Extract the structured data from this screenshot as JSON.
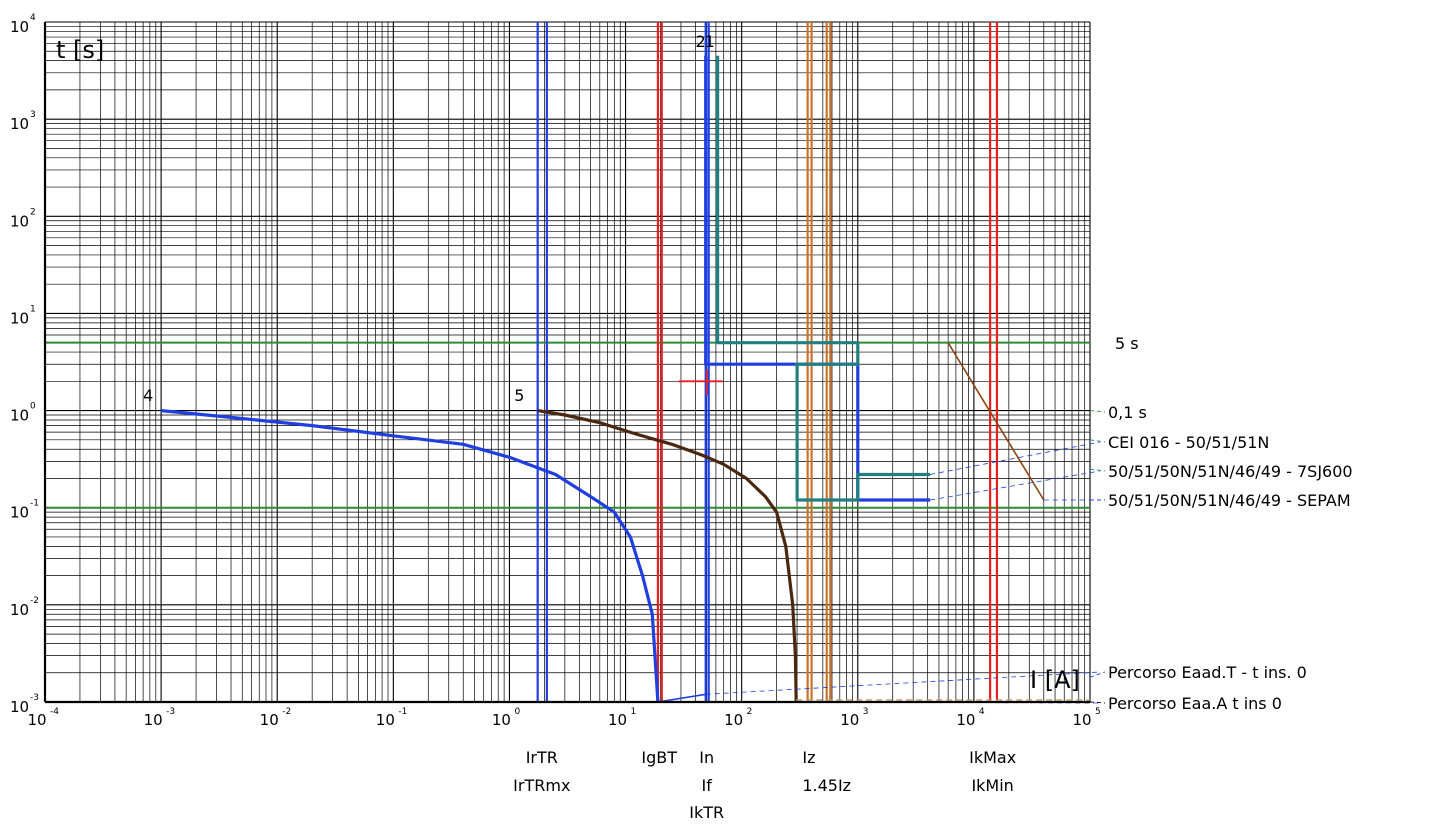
{
  "chart_data": {
    "type": "line",
    "title": "",
    "xlabel": "I [A]",
    "ylabel": "t [s]",
    "x_scale": "log",
    "y_scale": "log",
    "xlim": [
      0.0001,
      100000
    ],
    "ylim": [
      0.001,
      10000
    ],
    "grid": true,
    "x_ticks": [
      {
        "base": "10",
        "exp": "-4",
        "value": 0.0001
      },
      {
        "base": "10",
        "exp": "-3",
        "value": 0.001
      },
      {
        "base": "10",
        "exp": "-2",
        "value": 0.01
      },
      {
        "base": "10",
        "exp": "-1",
        "value": 0.1
      },
      {
        "base": "10",
        "exp": "0",
        "value": 1
      },
      {
        "base": "10",
        "exp": "1",
        "value": 10
      },
      {
        "base": "10",
        "exp": "2",
        "value": 100
      },
      {
        "base": "10",
        "exp": "3",
        "value": 1000
      },
      {
        "base": "10",
        "exp": "4",
        "value": 10000
      },
      {
        "base": "10",
        "exp": "5",
        "value": 100000
      }
    ],
    "y_ticks": [
      {
        "base": "10",
        "exp": "-3",
        "value": 0.001
      },
      {
        "base": "10",
        "exp": "-2",
        "value": 0.01
      },
      {
        "base": "10",
        "exp": "-1",
        "value": 0.1
      },
      {
        "base": "10",
        "exp": "0",
        "value": 1
      },
      {
        "base": "10",
        "exp": "1",
        "value": 10
      },
      {
        "base": "10",
        "exp": "2",
        "value": 100
      },
      {
        "base": "10",
        "exp": "3",
        "value": 1000
      },
      {
        "base": "10",
        "exp": "4",
        "value": 10000
      }
    ],
    "horizontal_lines": [
      {
        "y": 5,
        "color": "#2e8b2e",
        "label": "5 s"
      },
      {
        "y": 0.1,
        "color": "#2e8b2e",
        "label": ""
      }
    ],
    "vertical_lines": [
      {
        "x": 1.75,
        "color": "#1f3fe0"
      },
      {
        "x": 2.1,
        "color": "#1f3fe0"
      },
      {
        "x": 19,
        "color": "#e62020"
      },
      {
        "x": 20.5,
        "color": "#e62020"
      },
      {
        "x": 49,
        "color": "#1f3fe0"
      },
      {
        "x": 52,
        "color": "#1f3fe0"
      },
      {
        "x": 370,
        "color": "#c8732c"
      },
      {
        "x": 400,
        "color": "#c8732c"
      },
      {
        "x": 540,
        "color": "#c8732c"
      },
      {
        "x": 580,
        "color": "#c8732c"
      },
      {
        "x": 13800,
        "color": "#e62020"
      },
      {
        "x": 15800,
        "color": "#e62020"
      }
    ],
    "series": [
      {
        "label": "4",
        "color": "#1f3fe0",
        "points": [
          [
            0.001,
            1.0
          ],
          [
            0.004,
            0.85
          ],
          [
            0.02,
            0.7
          ],
          [
            0.1,
            0.55
          ],
          [
            0.4,
            0.45
          ],
          [
            1,
            0.33
          ],
          [
            2.5,
            0.22
          ],
          [
            5,
            0.13
          ],
          [
            8,
            0.09
          ],
          [
            11,
            0.05
          ],
          [
            14,
            0.02
          ],
          [
            17,
            0.008
          ],
          [
            19,
            0.001
          ]
        ]
      },
      {
        "label": "5",
        "color": "#4a2810",
        "points": [
          [
            1.75,
            1.0
          ],
          [
            3,
            0.9
          ],
          [
            6,
            0.75
          ],
          [
            12,
            0.58
          ],
          [
            25,
            0.45
          ],
          [
            45,
            0.35
          ],
          [
            70,
            0.28
          ],
          [
            110,
            0.2
          ],
          [
            160,
            0.13
          ],
          [
            200,
            0.09
          ],
          [
            240,
            0.04
          ],
          [
            275,
            0.01
          ],
          [
            290,
            0.003
          ],
          [
            295,
            0.001
          ]
        ]
      },
      {
        "label": "1",
        "color": "#1f3fe0",
        "points": [
          [
            49,
            4500
          ],
          [
            49,
            3
          ],
          [
            1000,
            3
          ],
          [
            1000,
            0.12
          ],
          [
            4200,
            0.12
          ]
        ]
      },
      {
        "label": "2",
        "color": "#208080",
        "points": [
          [
            62,
            4500
          ],
          [
            62,
            5
          ],
          [
            1000,
            5
          ],
          [
            1000,
            3
          ],
          [
            300,
            3
          ],
          [
            300,
            0.12
          ],
          [
            1000,
            0.12
          ],
          [
            1000,
            0.22
          ],
          [
            4200,
            0.22
          ]
        ]
      },
      {
        "label": "",
        "color": "#8b4513",
        "points": [
          [
            6000,
            5
          ],
          [
            40000,
            0.12
          ]
        ]
      },
      {
        "label": "",
        "color": "#1f3fe0",
        "points": [
          [
            19,
            0.001
          ],
          [
            49,
            0.0012
          ]
        ]
      }
    ],
    "curve_labels": [
      {
        "text": "4",
        "x": 0.0007,
        "y": 1.25
      },
      {
        "text": "5",
        "x": 1.1,
        "y": 1.25
      },
      {
        "text": "2",
        "x": 40,
        "y": 5500
      },
      {
        "text": "1",
        "x": 48,
        "y": 5500
      }
    ],
    "marker": {
      "x": 50,
      "y": 2,
      "color": "#e62020"
    },
    "legend": {
      "placement": "right",
      "entries": [
        {
          "text": "5 s",
          "color": "#2e8b2e",
          "y": 5
        },
        {
          "text": "0,1 s",
          "color": "#2e8b2e",
          "y": 1.0
        },
        {
          "text": "CEI 016 - 50/51/51N",
          "color": "#208080",
          "y": 0.5
        },
        {
          "text": "50/51/50N/51N/46/49 - 7SJ600",
          "color": "#208080",
          "y": 0.25
        },
        {
          "text": "50/51/50N/51N/46/49 - SEPAM",
          "color": "#1f3fe0",
          "y": 0.12
        },
        {
          "text": "Percorso Eaad.T - t ins. 0",
          "color": "#1f3fe0",
          "y": 0.0018
        },
        {
          "text": "Percorso Eaa.A t ins 0",
          "color": "#000000",
          "y": 0.001
        }
      ]
    },
    "x_marker_labels": [
      {
        "text": "IrTR",
        "x": 1.9,
        "row": 0
      },
      {
        "text": "IrTRmx",
        "x": 1.9,
        "row": 1
      },
      {
        "text": "IgBT",
        "x": 19.5,
        "row": 0
      },
      {
        "text": "In",
        "x": 50,
        "row": 0
      },
      {
        "text": "If",
        "x": 50,
        "row": 1
      },
      {
        "text": "IkTR",
        "x": 50,
        "row": 2
      },
      {
        "text": "Iz",
        "x": 380,
        "row": 0
      },
      {
        "text": "1.45Iz",
        "x": 540,
        "row": 1
      },
      {
        "text": "IkMax",
        "x": 14500,
        "row": 0
      },
      {
        "text": "IkMin",
        "x": 14500,
        "row": 1
      }
    ]
  }
}
